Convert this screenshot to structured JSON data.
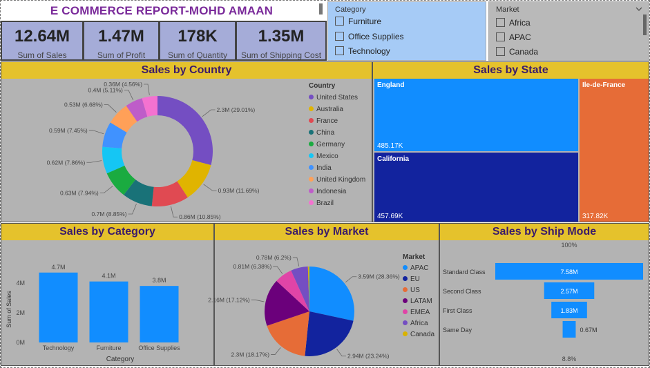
{
  "report": {
    "title": "E COMMERCE REPORT-MOHD AMAAN"
  },
  "kpis": [
    {
      "value": "12.64M",
      "label": "Sum of Sales"
    },
    {
      "value": "1.47M",
      "label": "Sum of Profit"
    },
    {
      "value": "178K",
      "label": "Sum of Quantity"
    },
    {
      "value": "1.35M",
      "label": "Sum of Shipping Cost"
    }
  ],
  "category_slicer": {
    "header": "Category",
    "options": [
      "Furniture",
      "Office Supplies",
      "Technology"
    ]
  },
  "market_slicer": {
    "header": "Market",
    "options": [
      "Africa",
      "APAC",
      "Canada"
    ]
  },
  "colors": {
    "title_bar": "#e5c22c",
    "panel_bg": "#b3b3b3",
    "kpi_bg": "#a5acd8",
    "slicer_blue": "#a6cbf6",
    "bar_blue": "#118dff"
  },
  "chart_data": [
    {
      "type": "pie",
      "title": "Sales by Country",
      "legend_title": "Country",
      "legend_position": "right",
      "donut": true,
      "slices": [
        {
          "name": "United States",
          "value": 2.3,
          "label": "2.3M (29.01%)",
          "color": "#744ec2"
        },
        {
          "name": "Australia",
          "value": 0.93,
          "label": "0.93M (11.69%)",
          "color": "#e0b400"
        },
        {
          "name": "France",
          "value": 0.86,
          "label": "0.86M (10.85%)",
          "color": "#e04a52"
        },
        {
          "name": "China",
          "value": 0.7,
          "label": "0.7M (8.85%)",
          "color": "#197278"
        },
        {
          "name": "Germany",
          "value": 0.63,
          "label": "0.63M (7.94%)",
          "color": "#1aab40"
        },
        {
          "name": "Mexico",
          "value": 0.62,
          "label": "0.62M (7.86%)",
          "color": "#15c6f4"
        },
        {
          "name": "India",
          "value": 0.59,
          "label": "0.59M (7.45%)",
          "color": "#4092ff"
        },
        {
          "name": "United Kingdom",
          "value": 0.53,
          "label": "0.53M (6.68%)",
          "color": "#ffa058"
        },
        {
          "name": "Indonesia",
          "value": 0.4,
          "label": "0.4M (5.11%)",
          "color": "#be5dc9"
        },
        {
          "name": "Brazil",
          "value": 0.36,
          "label": "0.36M (4.56%)",
          "color": "#f472d0"
        }
      ]
    },
    {
      "type": "treemap",
      "title": "Sales by State",
      "items": [
        {
          "name": "England",
          "value": 485.17,
          "label": "485.17K",
          "color": "#118dff"
        },
        {
          "name": "California",
          "value": 457.69,
          "label": "457.69K",
          "color": "#12239e"
        },
        {
          "name": "Ile-de-France",
          "value": 317.82,
          "label": "317.82K",
          "color": "#e66c37"
        }
      ]
    },
    {
      "type": "bar",
      "title": "Sales by Category",
      "xlabel": "Category",
      "ylabel": "Sum of Sales",
      "categories": [
        "Technology",
        "Furniture",
        "Office Supplies"
      ],
      "values": [
        4.7,
        4.1,
        3.8
      ],
      "data_labels": [
        "4.7M",
        "4.1M",
        "3.8M"
      ],
      "yticks": [
        "0M",
        "2M",
        "4M"
      ],
      "ylim": [
        0,
        5.2
      ],
      "color": "#118dff"
    },
    {
      "type": "pie",
      "title": "Sales by Market",
      "legend_title": "Market",
      "legend_position": "right",
      "slices": [
        {
          "name": "APAC",
          "value": 3.59,
          "label": "3.59M (28.36%)",
          "color": "#118dff"
        },
        {
          "name": "EU",
          "value": 2.94,
          "label": "2.94M (23.24%)",
          "color": "#12239e"
        },
        {
          "name": "US",
          "value": 2.3,
          "label": "2.3M (18.17%)",
          "color": "#e66c37"
        },
        {
          "name": "LATAM",
          "value": 2.16,
          "label": "2.16M (17.12%)",
          "color": "#6b007b"
        },
        {
          "name": "EMEA",
          "value": 0.81,
          "label": "0.81M (6.38%)",
          "color": "#e044a7"
        },
        {
          "name": "Africa",
          "value": 0.78,
          "label": "0.78M (6.2%)",
          "color": "#744ec2"
        },
        {
          "name": "Canada",
          "value": 0.07,
          "label": "",
          "color": "#d9b300"
        }
      ]
    },
    {
      "type": "funnel",
      "title": "Sales by Ship Mode",
      "top_label": "100%",
      "bottom_label": "8.8%",
      "stages": [
        {
          "name": "Standard Class",
          "value": 7.58,
          "label": "7.58M"
        },
        {
          "name": "Second Class",
          "value": 2.57,
          "label": "2.57M"
        },
        {
          "name": "First Class",
          "value": 1.83,
          "label": "1.83M"
        },
        {
          "name": "Same Day",
          "value": 0.67,
          "label": "0.67M"
        }
      ],
      "color": "#118dff"
    }
  ]
}
